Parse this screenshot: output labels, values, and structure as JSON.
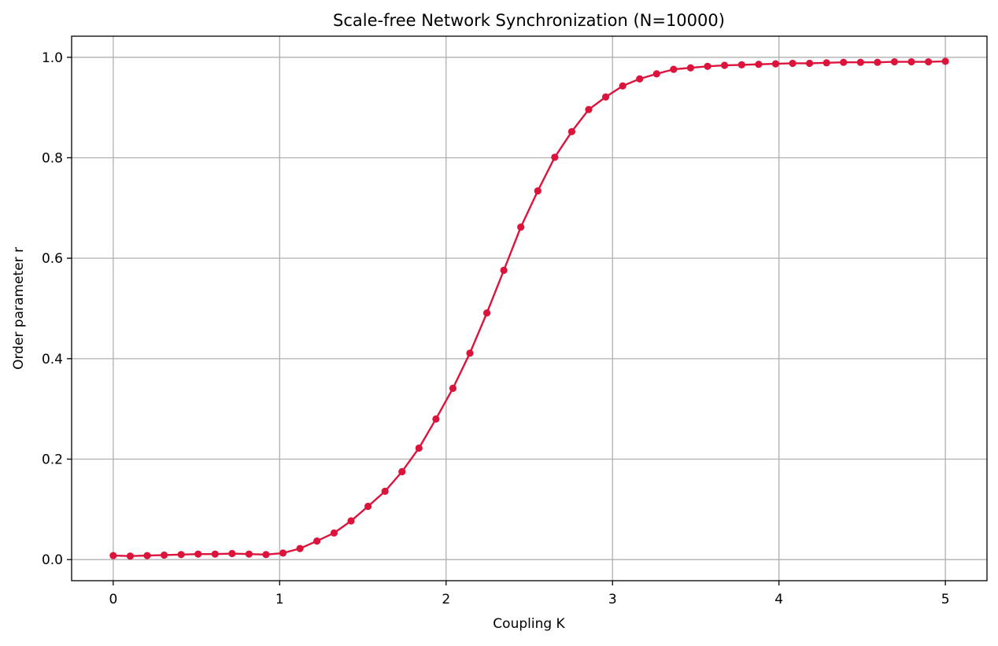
{
  "chart_data": {
    "type": "line",
    "title": "Scale-free Network Synchronization (N=10000)",
    "xlabel": "Coupling K",
    "ylabel": "Order parameter r",
    "xlim": [
      -0.25,
      5.25
    ],
    "ylim": [
      -0.042,
      1.042
    ],
    "xticks": [
      0,
      1,
      2,
      3,
      4,
      5
    ],
    "xtick_labels": [
      "0",
      "1",
      "2",
      "3",
      "4",
      "5"
    ],
    "yticks": [
      0.0,
      0.2,
      0.4,
      0.6,
      0.8,
      1.0
    ],
    "ytick_labels": [
      "0.0",
      "0.2",
      "0.4",
      "0.6",
      "0.8",
      "1.0"
    ],
    "grid": true,
    "colors": {
      "series": "#dc143c",
      "grid": "#b0b0b0",
      "axes": "#000000"
    },
    "series": [
      {
        "marker": "circle",
        "x": [
          0.0,
          0.102,
          0.204,
          0.306,
          0.408,
          0.51,
          0.612,
          0.714,
          0.816,
          0.918,
          1.02,
          1.122,
          1.224,
          1.327,
          1.429,
          1.531,
          1.633,
          1.735,
          1.837,
          1.939,
          2.041,
          2.143,
          2.245,
          2.347,
          2.449,
          2.551,
          2.653,
          2.755,
          2.857,
          2.959,
          3.061,
          3.163,
          3.265,
          3.367,
          3.469,
          3.571,
          3.673,
          3.776,
          3.878,
          3.98,
          4.082,
          4.184,
          4.286,
          4.388,
          4.49,
          4.592,
          4.694,
          4.796,
          4.898,
          5.0
        ],
        "y": [
          0.008,
          0.007,
          0.008,
          0.009,
          0.01,
          0.011,
          0.011,
          0.012,
          0.011,
          0.01,
          0.013,
          0.022,
          0.037,
          0.053,
          0.077,
          0.106,
          0.136,
          0.175,
          0.222,
          0.28,
          0.341,
          0.411,
          0.491,
          0.576,
          0.662,
          0.734,
          0.801,
          0.852,
          0.896,
          0.921,
          0.943,
          0.957,
          0.967,
          0.976,
          0.979,
          0.982,
          0.984,
          0.985,
          0.986,
          0.987,
          0.988,
          0.988,
          0.989,
          0.99,
          0.99,
          0.99,
          0.991,
          0.991,
          0.991,
          0.992
        ]
      }
    ]
  }
}
